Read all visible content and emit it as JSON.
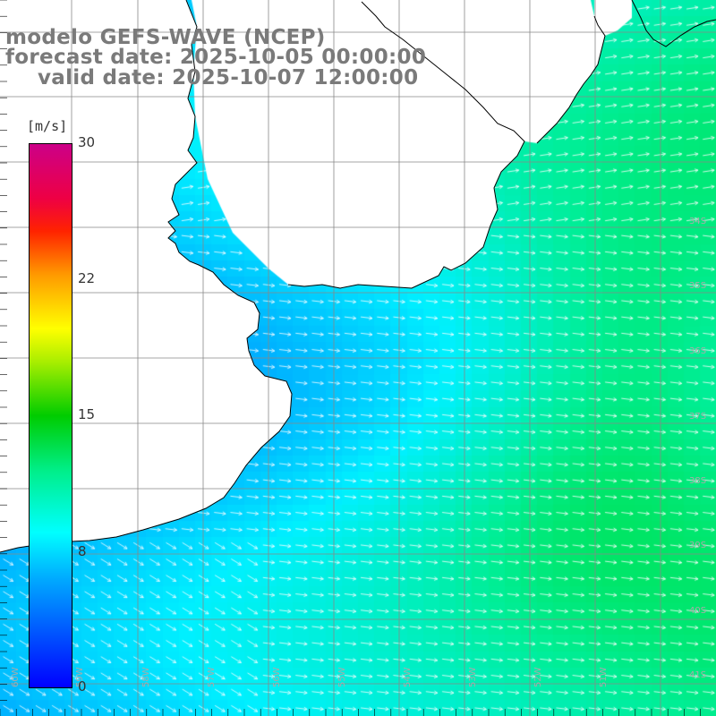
{
  "title": {
    "line1": "modelo GEFS-WAVE (NCEP)",
    "line2": "forecast date: 2025-10-05 00:00:00",
    "line3": "valid date: 2025-10-07 12:00:00"
  },
  "colorbar": {
    "unit": "[m/s]",
    "ticks": [
      "30",
      "22",
      "15",
      "8",
      "0"
    ],
    "tick_values": [
      30,
      22,
      15,
      8,
      0
    ],
    "range": [
      0,
      30
    ],
    "colors": [
      "#0000ff",
      "#0066ff",
      "#00aaff",
      "#00ffff",
      "#00ee88",
      "#00cc00",
      "#aaee00",
      "#ffff00",
      "#ff9900",
      "#ff2200",
      "#ee0044",
      "#cc0088"
    ]
  },
  "lat_labels": [
    "34S",
    "35S",
    "36S",
    "37S",
    "38S",
    "39S",
    "40S",
    "41S"
  ],
  "lon_labels": [
    "60W",
    "59W",
    "58W",
    "57W",
    "56W",
    "55W",
    "54W",
    "53W",
    "52W",
    "51W"
  ],
  "map": {
    "field": "wind speed",
    "land_color": "#ffffff",
    "arrow_color": "#ffffff",
    "grid_color": "#888888",
    "coast_color": "#000000"
  }
}
